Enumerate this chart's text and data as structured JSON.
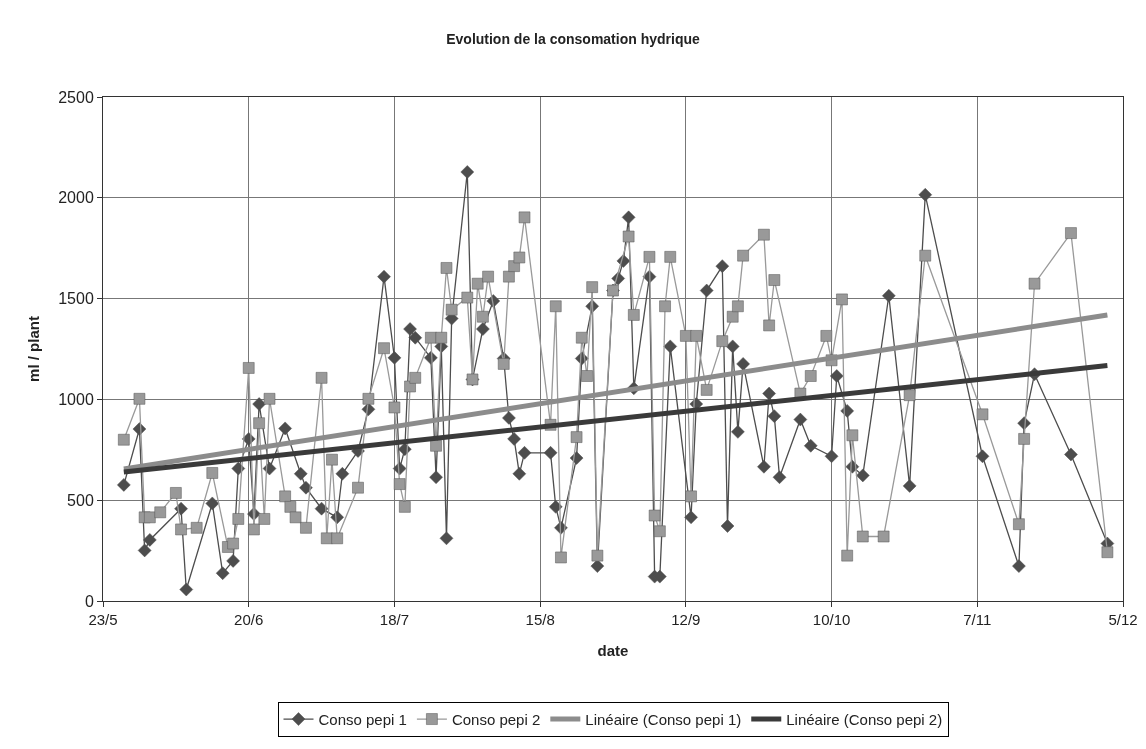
{
  "chart_data": {
    "type": "line",
    "title": "Evolution de la consomation hydrique",
    "xlabel": "date",
    "ylabel": "ml / plant",
    "xlim": [
      "--05-23",
      "--12-05"
    ],
    "xticks": [
      {
        "value": "--05-23",
        "label": "23/5"
      },
      {
        "value": "--06-20",
        "label": "20/6"
      },
      {
        "value": "--07-18",
        "label": "18/7"
      },
      {
        "value": "--08-15",
        "label": "15/8"
      },
      {
        "value": "--09-12",
        "label": "12/9"
      },
      {
        "value": "--10-10",
        "label": "10/10"
      },
      {
        "value": "--11-07",
        "label": "7/11"
      },
      {
        "value": "--12-05",
        "label": "5/12"
      }
    ],
    "ylim": [
      0,
      2500
    ],
    "yticks": [
      0,
      500,
      1000,
      1500,
      2000,
      2500
    ],
    "grid": true,
    "legend": "bottom",
    "series": [
      {
        "name": "Conso pepi 1",
        "color": "#4d4d4d",
        "marker": "diamond",
        "x": [
          "--05-27",
          "--05-30",
          "--05-31",
          "--06-01",
          "--06-07",
          "--06-08",
          "--06-13",
          "--06-15",
          "--06-17",
          "--06-18",
          "--06-20",
          "--06-21",
          "--06-22",
          "--06-24",
          "--06-27",
          "--06-30",
          "--07-01",
          "--07-04",
          "--07-07",
          "--07-08",
          "--07-11",
          "--07-13",
          "--07-16",
          "--07-18",
          "--07-19",
          "--07-20",
          "--07-21",
          "--07-22",
          "--07-25",
          "--07-26",
          "--07-27",
          "--07-28",
          "--07-29",
          "--08-01",
          "--08-02",
          "--08-04",
          "--08-06",
          "--08-08",
          "--08-09",
          "--08-10",
          "--08-11",
          "--08-12",
          "--08-17",
          "--08-18",
          "--08-19",
          "--08-22",
          "--08-23",
          "--08-25",
          "--08-26",
          "--08-29",
          "--08-30",
          "--08-31",
          "--09-01",
          "--09-02",
          "--09-05",
          "--09-06",
          "--09-07",
          "--09-09",
          "--09-13",
          "--09-14",
          "--09-16",
          "--09-19",
          "--09-20",
          "--09-21",
          "--09-22",
          "--09-23",
          "--09-27",
          "--09-28",
          "--09-29",
          "--09-30",
          "--10-04",
          "--10-06",
          "--10-10",
          "--10-11",
          "--10-13",
          "--10-14",
          "--10-16",
          "--10-21",
          "--10-25",
          "--10-28",
          "--11-08",
          "--11-15",
          "--11-16",
          "--11-18",
          "--11-25",
          "--12-02"
        ],
        "values": [
          576,
          853,
          251,
          303,
          458,
          57,
          484,
          138,
          199,
          657,
          804,
          432,
          977,
          657,
          856,
          631,
          562,
          458,
          415,
          631,
          744,
          951,
          1609,
          1206,
          657,
          753,
          1349,
          1306,
          1206,
          614,
          1263,
          311,
          1401,
          2128,
          1099,
          1349,
          1488,
          1203,
          908,
          804,
          631,
          735,
          735,
          467,
          363,
          709,
          1203,
          1462,
          173,
          1540,
          1600,
          1687,
          1903,
          1055,
          1609,
          121,
          121,
          1263,
          415,
          977,
          1540,
          1661,
          372,
          1263,
          839,
          1176,
          666,
          1029,
          917,
          614,
          900,
          770,
          718,
          1116,
          943,
          666,
          623,
          1514,
          571,
          2015,
          718,
          173,
          882,
          1125,
          727,
          285
        ]
      },
      {
        "name": "Conso pepi 2",
        "color": "#999999",
        "marker": "square",
        "x": [
          "--05-27",
          "--05-30",
          "--05-31",
          "--06-01",
          "--06-03",
          "--06-06",
          "--06-07",
          "--06-10",
          "--06-13",
          "--06-16",
          "--06-17",
          "--06-18",
          "--06-20",
          "--06-21",
          "--06-22",
          "--06-23",
          "--06-24",
          "--06-27",
          "--06-28",
          "--06-29",
          "--07-01",
          "--07-04",
          "--07-05",
          "--07-06",
          "--07-07",
          "--07-11",
          "--07-13",
          "--07-16",
          "--07-18",
          "--07-19",
          "--07-20",
          "--07-21",
          "--07-22",
          "--07-25",
          "--07-26",
          "--07-27",
          "--07-28",
          "--07-29",
          "--08-01",
          "--08-02",
          "--08-03",
          "--08-04",
          "--08-05",
          "--08-08",
          "--08-09",
          "--08-10",
          "--08-11",
          "--08-12",
          "--08-17",
          "--08-18",
          "--08-19",
          "--08-22",
          "--08-23",
          "--08-24",
          "--08-25",
          "--08-26",
          "--08-29",
          "--09-01",
          "--09-02",
          "--09-05",
          "--09-06",
          "--09-07",
          "--09-08",
          "--09-09",
          "--09-12",
          "--09-13",
          "--09-14",
          "--09-16",
          "--09-19",
          "--09-21",
          "--09-22",
          "--09-23",
          "--09-27",
          "--09-28",
          "--09-29",
          "--10-04",
          "--10-06",
          "--10-09",
          "--10-10",
          "--10-12",
          "--10-13",
          "--10-14",
          "--10-16",
          "--10-20",
          "--10-25",
          "--10-28",
          "--11-08",
          "--11-15",
          "--11-16",
          "--11-18",
          "--11-25",
          "--12-02"
        ],
        "values": [
          800,
          1003,
          415,
          415,
          440,
          536,
          355,
          363,
          635,
          268,
          285,
          407,
          1156,
          355,
          882,
          407,
          1003,
          519,
          467,
          415,
          363,
          1107,
          311,
          701,
          311,
          562,
          1003,
          1254,
          960,
          580,
          467,
          1064,
          1107,
          1306,
          770,
          1306,
          1652,
          1445,
          1505,
          1099,
          1574,
          1410,
          1609,
          1176,
          1609,
          1661,
          1704,
          1903,
          874,
          1462,
          216,
          813,
          1306,
          1116,
          1557,
          225,
          1540,
          1808,
          1419,
          1707,
          424,
          346,
          1462,
          1707,
          1315,
          519,
          1315,
          1047,
          1289,
          1410,
          1462,
          1713,
          1817,
          1367,
          1592,
          1029,
          1116,
          1315,
          1194,
          1496,
          225,
          822,
          320,
          320,
          1021,
          1713,
          926,
          381,
          804,
          1574,
          1825,
          242
        ]
      },
      {
        "name": "Linéaire (Conso pepi 1)",
        "type": "line",
        "color": "#8c8c8c",
        "marker": "none",
        "x": [
          "--05-27",
          "--12-02"
        ],
        "values": [
          655,
          1419
        ]
      },
      {
        "name": "Linéaire (Conso pepi 2)",
        "type": "line",
        "color": "#3a3a3a",
        "marker": "none",
        "x": [
          "--05-27",
          "--12-02"
        ],
        "values": [
          640,
          1168
        ]
      }
    ]
  }
}
